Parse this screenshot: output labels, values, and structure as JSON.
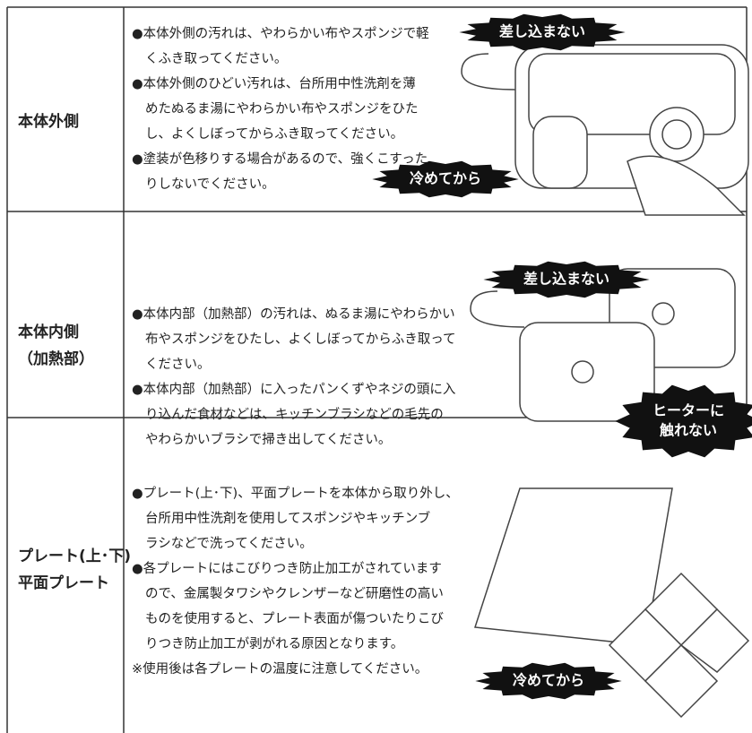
{
  "rows": [
    {
      "label": [
        "本体外側"
      ],
      "items": [
        [
          "●本体外側の汚れは、やわらかい布やスポンジで軽",
          "くふき取ってください。"
        ],
        [
          "●本体外側のひどい汚れは、台所用中性洗剤を薄",
          "めたぬるま湯にやわらかい布やスポンジをひた",
          "し、よくしぼってからふき取ってください。"
        ],
        [
          "●塗装が色移りする場合があるので、強くこすった",
          "りしないでください。"
        ]
      ],
      "badges": [
        {
          "lines": [
            "差し込まない"
          ]
        },
        {
          "lines": [
            "冷めてから"
          ]
        }
      ]
    },
    {
      "label": [
        "本体内側",
        "（加熱部）"
      ],
      "items": [
        [
          "●本体内部（加熱部）の汚れは、ぬるま湯にやわらかい",
          "布やスポンジをひたし、よくしぼってからふき取って",
          "ください。"
        ],
        [
          "●本体内部（加熱部）に入ったパンくずやネジの頭に入",
          "り込んだ食材などは、キッチンブラシなどの毛先の",
          "やわらかいブラシで掃き出してください。"
        ]
      ],
      "badges": [
        {
          "lines": [
            "差し込まない"
          ]
        },
        {
          "lines": [
            "ヒーターに",
            "触れない"
          ]
        }
      ]
    },
    {
      "label": [
        "プレート(上･下)",
        "平面プレート"
      ],
      "items": [
        [
          "●プレート(上･下)、平面プレートを本体から取り外し、",
          "台所用中性洗剤を使用してスポンジやキッチンブ",
          "ラシなどで洗ってください。"
        ],
        [
          "●各プレートにはこびりつき防止加工がされています",
          "ので、金属製タワシやクレンザーなど研磨性の高い",
          "ものを使用すると、プレート表面が傷ついたりこび",
          "りつき防止加工が剥がれる原因となります。"
        ],
        [
          "※使用後は各プレートの温度に注意してください。"
        ]
      ],
      "badges": [
        {
          "lines": [
            "冷めてから"
          ]
        }
      ]
    }
  ]
}
